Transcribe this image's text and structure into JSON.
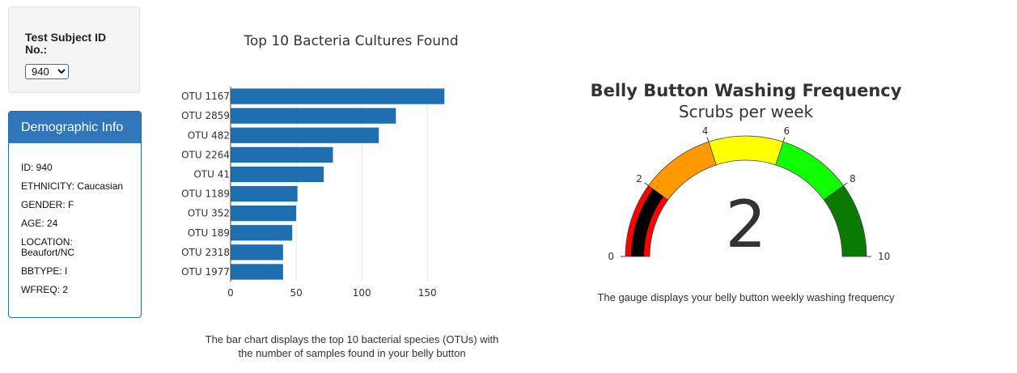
{
  "selector": {
    "label": "Test Subject ID No.:",
    "selected": "940"
  },
  "demographic": {
    "heading": "Demographic Info",
    "rows": [
      "ID: 940",
      "ETHNICITY: Caucasian",
      "GENDER: F",
      "AGE: 24",
      "LOCATION: Beaufort/NC",
      "BBTYPE: I",
      "WFREQ: 2"
    ]
  },
  "bar_caption": "The bar chart displays the top 10 bacterial species (OTUs) with the number of samples found in your belly button",
  "gauge_caption": "The gauge displays your belly button weekly washing frequency",
  "colors": {
    "bar": "#1f6fb0",
    "bands": [
      "#ff0000",
      "#ff9900",
      "#ffff00",
      "#11ff00",
      "#0a7a00"
    ],
    "needle": "#000000"
  },
  "chart_data": [
    {
      "type": "bar",
      "orientation": "horizontal",
      "title": "Top 10 Bacteria Cultures Found",
      "categories": [
        "OTU 1167",
        "OTU 2859",
        "OTU 482",
        "OTU 2264",
        "OTU 41",
        "OTU 1189",
        "OTU 352",
        "OTU 189",
        "OTU 2318",
        "OTU 1977"
      ],
      "values": [
        163,
        126,
        113,
        78,
        71,
        51,
        50,
        47,
        40,
        40
      ],
      "xlim": [
        0,
        185
      ],
      "xticks": [
        0,
        50,
        100,
        150
      ],
      "grid": true
    },
    {
      "type": "gauge",
      "title": "Belly Button Washing Frequency",
      "subtitle": "Scrubs per week",
      "value": 2,
      "range": [
        0,
        10
      ],
      "ticks": [
        0,
        2,
        4,
        6,
        8,
        10
      ],
      "bands": [
        [
          0,
          2
        ],
        [
          2,
          4
        ],
        [
          4,
          6
        ],
        [
          6,
          8
        ],
        [
          8,
          10
        ]
      ],
      "inner_bar_value": 2
    }
  ]
}
